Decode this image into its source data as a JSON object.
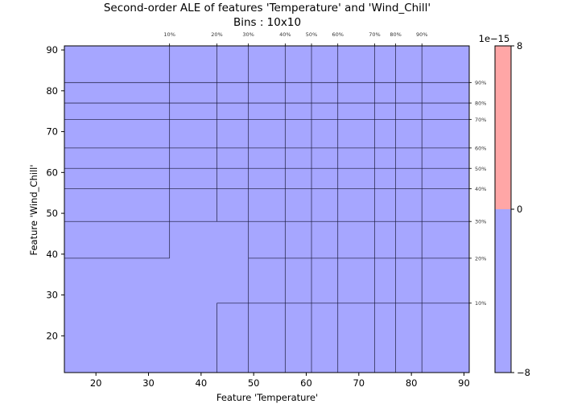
{
  "chart_data": {
    "type": "heatmap",
    "title": "Second-order ALE of features 'Temperature' and 'Wind_Chill'",
    "subtitle": "Bins : 10x10",
    "xlabel": "Feature 'Temperature'",
    "ylabel": "Feature 'Wind_Chill'",
    "xlim": [
      14,
      91
    ],
    "ylim": [
      11,
      91
    ],
    "x_ticks": [
      20,
      30,
      40,
      50,
      60,
      70,
      80,
      90
    ],
    "y_ticks": [
      20,
      30,
      40,
      50,
      60,
      70,
      80,
      90
    ],
    "x_quantiles": [
      {
        "label": "10%",
        "value": 34
      },
      {
        "label": "20%",
        "value": 43
      },
      {
        "label": "30%",
        "value": 49
      },
      {
        "label": "40%",
        "value": 56
      },
      {
        "label": "50%",
        "value": 61
      },
      {
        "label": "60%",
        "value": 66
      },
      {
        "label": "70%",
        "value": 73
      },
      {
        "label": "80%",
        "value": 77
      },
      {
        "label": "90%",
        "value": 82
      }
    ],
    "y_quantiles": [
      {
        "label": "10%",
        "value": 28
      },
      {
        "label": "20%",
        "value": 39
      },
      {
        "label": "30%",
        "value": 48
      },
      {
        "label": "40%",
        "value": 56
      },
      {
        "label": "50%",
        "value": 61
      },
      {
        "label": "60%",
        "value": 66
      },
      {
        "label": "70%",
        "value": 73
      },
      {
        "label": "80%",
        "value": 77
      },
      {
        "label": "90%",
        "value": 82
      }
    ],
    "colorbar": {
      "scale_label": "1e−15",
      "min": -8,
      "max": 8,
      "ticks": [
        {
          "label": "8",
          "value": 8
        },
        {
          "label": "0",
          "value": 0
        },
        {
          "label": "−8",
          "value": -8
        }
      ],
      "negative_color": "#a6a6ff",
      "positive_color": "#ffa6a6"
    },
    "fill_color": "#a6a6ff",
    "region_boundary_segments": [
      {
        "axis": "v",
        "x": 34,
        "y": [
          39,
          91
        ]
      },
      {
        "axis": "v",
        "x": 43,
        "y": [
          48,
          91
        ]
      },
      {
        "axis": "v",
        "x": 43,
        "y": [
          11,
          28
        ]
      },
      {
        "axis": "v",
        "x": 49,
        "y": [
          11,
          91
        ]
      },
      {
        "axis": "v",
        "x": 56,
        "y": [
          11,
          91
        ]
      },
      {
        "axis": "v",
        "x": 61,
        "y": [
          11,
          91
        ]
      },
      {
        "axis": "v",
        "x": 66,
        "y": [
          11,
          91
        ]
      },
      {
        "axis": "v",
        "x": 73,
        "y": [
          11,
          91
        ]
      },
      {
        "axis": "v",
        "x": 77,
        "y": [
          11,
          91
        ]
      },
      {
        "axis": "v",
        "x": 82,
        "y": [
          11,
          91
        ]
      },
      {
        "axis": "h",
        "y": 82,
        "x": [
          14,
          91
        ]
      },
      {
        "axis": "h",
        "y": 77,
        "x": [
          14,
          91
        ]
      },
      {
        "axis": "h",
        "y": 73,
        "x": [
          14,
          91
        ]
      },
      {
        "axis": "h",
        "y": 66,
        "x": [
          14,
          91
        ]
      },
      {
        "axis": "h",
        "y": 61,
        "x": [
          14,
          91
        ]
      },
      {
        "axis": "h",
        "y": 56,
        "x": [
          14,
          91
        ]
      },
      {
        "axis": "h",
        "y": 48,
        "x": [
          14,
          91
        ]
      },
      {
        "axis": "h",
        "y": 39,
        "x": [
          14,
          34
        ]
      },
      {
        "axis": "h",
        "y": 39,
        "x": [
          49,
          91
        ]
      },
      {
        "axis": "h",
        "y": 28,
        "x": [
          43,
          91
        ]
      }
    ]
  }
}
